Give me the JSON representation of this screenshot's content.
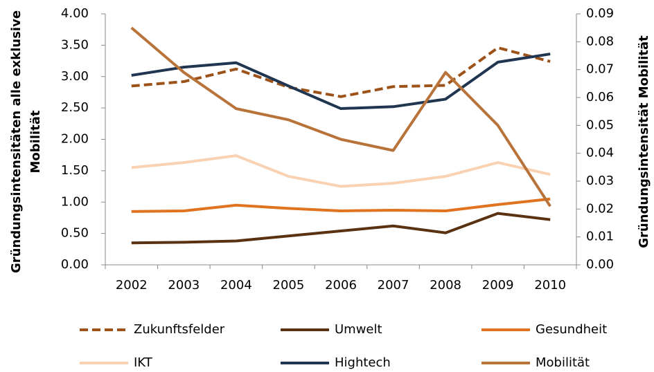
{
  "chart_data": {
    "type": "line",
    "categories": [
      "2002",
      "2003",
      "2004",
      "2005",
      "2006",
      "2007",
      "2008",
      "2009",
      "2010"
    ],
    "ylabel": [
      "Gründungsintensitäten alle exklusive",
      "Mobilität"
    ],
    "y2label": "Gründungsintensität Mobilität",
    "ylim": [
      0,
      4
    ],
    "yticks": [
      {
        "value": 0,
        "label": "0.00"
      },
      {
        "value": 0.5,
        "label": "0.50"
      },
      {
        "value": 1,
        "label": "1.00"
      },
      {
        "value": 1.5,
        "label": "1.50"
      },
      {
        "value": 2,
        "label": "2.00"
      },
      {
        "value": 2.5,
        "label": "2.50"
      },
      {
        "value": 3,
        "label": "3.00"
      },
      {
        "value": 3.5,
        "label": "3.50"
      },
      {
        "value": 4,
        "label": "4.00"
      }
    ],
    "y2lim": [
      0,
      0.09
    ],
    "y2ticks": [
      {
        "value": 0,
        "label": "0.00"
      },
      0.01,
      0.02,
      0.03,
      0.04,
      0.05,
      0.06,
      0.07,
      0.08,
      0.09
    ],
    "legend": "bottom",
    "series": [
      {
        "name": "Zukunftsfelder",
        "color": "#9c5219",
        "dashed": true,
        "values": [
          2.85,
          2.92,
          3.12,
          2.83,
          2.68,
          2.84,
          2.86,
          3.46,
          3.24
        ]
      },
      {
        "name": "Umwelt",
        "color": "#5a3211",
        "values": [
          0.35,
          0.36,
          0.38,
          0.46,
          0.54,
          0.62,
          0.51,
          0.82,
          0.72
        ]
      },
      {
        "name": "Gesundheit",
        "color": "#e0731f",
        "values": [
          0.85,
          0.86,
          0.95,
          0.9,
          0.86,
          0.87,
          0.86,
          0.96,
          1.05
        ]
      },
      {
        "name": "IKT",
        "color": "#f8d2b2",
        "values": [
          1.55,
          1.63,
          1.74,
          1.41,
          1.25,
          1.3,
          1.41,
          1.63,
          1.44
        ]
      },
      {
        "name": "Hightech",
        "color": "#1f3550",
        "values": [
          3.02,
          3.15,
          3.22,
          2.85,
          2.49,
          2.52,
          2.64,
          3.23,
          3.36
        ]
      },
      {
        "name": "Mobilität",
        "color": "#b8733a",
        "axis": "y2",
        "values": [
          0.085,
          0.069,
          0.056,
          0.052,
          0.045,
          0.041,
          0.069,
          0.05,
          0.021
        ]
      }
    ]
  }
}
